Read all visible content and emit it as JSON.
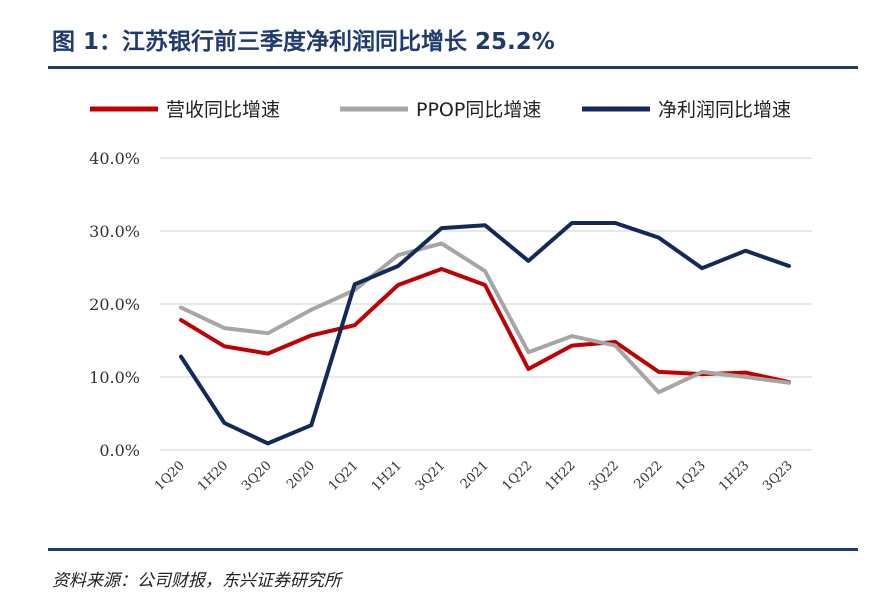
{
  "header": {
    "title": "图 1：江苏银行前三季度净利润同比增长 25.2%"
  },
  "footer": {
    "source": "资料来源：公司财报，东兴证券研究所"
  },
  "chart_data": {
    "type": "line",
    "categories": [
      "1Q20",
      "1H20",
      "3Q20",
      "2020",
      "1Q21",
      "1H21",
      "3Q21",
      "2021",
      "1Q22",
      "1H22",
      "3Q22",
      "2022",
      "1Q23",
      "1H23",
      "3Q23"
    ],
    "series": [
      {
        "name": "营收同比增速",
        "color": "#c00000",
        "values": [
          17.8,
          14.2,
          13.2,
          15.7,
          17.1,
          22.6,
          24.8,
          22.6,
          11.1,
          14.3,
          14.8,
          10.7,
          10.4,
          10.6,
          9.3
        ]
      },
      {
        "name": "PPOP同比增速",
        "color": "#a6a6a6",
        "values": [
          19.5,
          16.7,
          16.0,
          19.2,
          21.9,
          26.7,
          28.3,
          24.5,
          13.4,
          15.6,
          14.3,
          7.9,
          10.7,
          10.0,
          9.2
        ]
      },
      {
        "name": "净利润同比增速",
        "color": "#14285a",
        "values": [
          12.8,
          3.7,
          0.9,
          3.4,
          22.7,
          25.2,
          30.4,
          30.8,
          25.9,
          31.1,
          31.1,
          29.1,
          24.9,
          27.3,
          25.2
        ]
      }
    ],
    "y_ticks": [
      "0.0%",
      "10.0%",
      "20.0%",
      "30.0%",
      "40.0%"
    ],
    "ylim": [
      0,
      40
    ],
    "grid": true,
    "legend": "top"
  }
}
